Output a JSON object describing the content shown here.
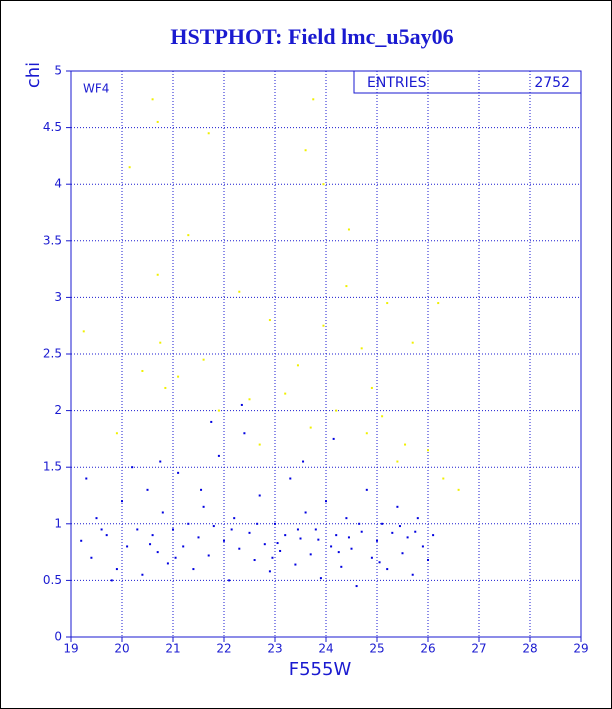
{
  "chart_data": {
    "type": "scatter",
    "title": "HSTPHOT: Field lmc_u5ay06",
    "xlabel": "F555W",
    "ylabel": "chi",
    "annotation": "WF4",
    "legend_label": "ENTRIES",
    "entries": "2752",
    "xlim": [
      19,
      29
    ],
    "xticks": [
      19,
      20,
      21,
      22,
      23,
      24,
      25,
      26,
      27,
      28,
      29
    ],
    "ylim": [
      0,
      5
    ],
    "yticks": [
      0,
      0.5,
      1,
      1.5,
      2,
      2.5,
      3,
      3.5,
      4,
      4.5,
      5
    ],
    "grid": true,
    "series": [
      {
        "color": "#0000e0",
        "x": [
          19.2,
          19.4,
          19.5,
          19.7,
          19.9,
          20.0,
          20.1,
          20.3,
          20.4,
          20.5,
          20.6,
          20.7,
          20.8,
          20.9,
          21.0,
          21.1,
          21.2,
          21.3,
          21.4,
          21.5,
          21.6,
          21.7,
          21.8,
          21.9,
          22.0,
          22.1,
          22.2,
          22.3,
          22.4,
          22.5,
          22.6,
          22.7,
          22.8,
          22.9,
          23.0,
          23.1,
          23.2,
          23.3,
          23.4,
          23.5,
          23.6,
          23.7,
          23.8,
          23.9,
          24.0,
          24.1,
          24.2,
          24.3,
          24.4,
          24.5,
          24.6,
          24.7,
          24.8,
          24.9,
          25.0,
          25.1,
          25.2,
          25.3,
          25.4,
          25.5,
          25.6,
          25.7,
          25.8,
          25.9,
          26.0,
          26.1,
          19.3,
          19.8,
          20.2,
          21.05,
          21.55,
          22.15,
          22.65,
          23.05,
          23.45,
          23.85,
          24.25,
          24.65,
          25.05,
          25.45,
          22.35,
          21.75,
          23.55,
          24.15,
          20.75,
          19.6,
          20.55,
          22.95,
          24.45,
          25.75
        ],
        "y": [
          0.85,
          0.7,
          1.05,
          0.9,
          0.6,
          1.2,
          0.8,
          0.95,
          0.55,
          1.3,
          0.9,
          0.75,
          1.1,
          0.65,
          0.95,
          1.45,
          0.8,
          1.0,
          0.6,
          0.88,
          1.15,
          0.72,
          0.98,
          1.6,
          0.85,
          0.5,
          1.05,
          0.78,
          1.8,
          0.92,
          0.68,
          1.25,
          0.82,
          0.58,
          1.0,
          0.76,
          0.9,
          1.4,
          0.64,
          0.87,
          1.1,
          0.73,
          0.95,
          0.52,
          1.2,
          0.8,
          0.9,
          0.62,
          1.05,
          0.78,
          0.45,
          0.93,
          1.3,
          0.7,
          0.85,
          1.0,
          0.6,
          0.92,
          1.15,
          0.74,
          0.88,
          0.55,
          1.05,
          0.8,
          0.68,
          0.9,
          1.4,
          0.5,
          1.5,
          0.7,
          1.3,
          0.95,
          1.0,
          0.83,
          0.95,
          0.86,
          0.75,
          1.0,
          0.66,
          0.98,
          2.05,
          1.9,
          1.55,
          1.75,
          1.55,
          0.95,
          0.82,
          0.7,
          0.88,
          0.93
        ]
      },
      {
        "color": "#f0f000",
        "x": [
          20.6,
          20.7,
          21.7,
          23.75,
          23.6,
          20.15,
          23.95,
          21.3,
          24.45,
          20.7,
          22.3,
          24.4,
          25.2,
          26.2,
          22.9,
          23.95,
          19.25,
          20.75,
          24.7,
          21.6,
          23.45,
          25.7,
          20.85,
          22.5,
          24.2,
          25.1,
          21.1,
          23.7,
          24.8,
          25.55,
          26.6,
          26.3,
          22.7,
          19.9,
          21.9,
          23.2,
          25.4,
          24.9,
          20.4,
          26.0
        ],
        "y": [
          4.75,
          4.55,
          4.45,
          4.75,
          4.3,
          4.15,
          4.0,
          3.55,
          3.6,
          3.2,
          3.05,
          3.1,
          2.95,
          2.95,
          2.8,
          2.75,
          2.7,
          2.6,
          2.55,
          2.45,
          2.4,
          2.6,
          2.2,
          2.1,
          2.0,
          1.95,
          2.3,
          1.85,
          1.8,
          1.7,
          1.3,
          1.4,
          1.7,
          1.8,
          2.0,
          2.15,
          1.55,
          2.2,
          2.35,
          1.65
        ]
      }
    ]
  }
}
